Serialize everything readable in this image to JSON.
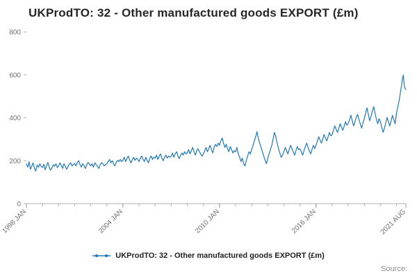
{
  "page": {
    "title": "UKProdTO: 32 - Other manufactured goods EXPORT (£m)",
    "source_label": "Source:"
  },
  "legend": {
    "label": "UKProdTO: 32 - Other manufactured goods EXPORT (£m)"
  },
  "chart_data": {
    "type": "line",
    "title": "UKProdTO: 32 - Other manufactured goods EXPORT (£m)",
    "xlabel": "",
    "ylabel": "",
    "ylim": [
      0,
      800
    ],
    "yticks": [
      0,
      200,
      400,
      600,
      800
    ],
    "x_start": "1998 JAN",
    "x_end": "2021 AUG",
    "x_frequency": "monthly",
    "grid": false,
    "legend_position": "bottom",
    "xticks": [
      {
        "index": 0,
        "label": "1998 JAN"
      },
      {
        "index": 72,
        "label": "2004 JAN"
      },
      {
        "index": 144,
        "label": "2010 JAN"
      },
      {
        "index": 216,
        "label": "2016 JAN"
      },
      {
        "index": 283,
        "label": "2021 AUG"
      }
    ],
    "minor_tick_every_months": 12,
    "series": [
      {
        "name": "UKProdTO: 32 - Other manufactured goods EXPORT (£m)",
        "color": "#1f77b4",
        "values": [
          185,
          170,
          195,
          160,
          175,
          190,
          165,
          152,
          180,
          170,
          186,
          174,
          168,
          184,
          158,
          176,
          192,
          170,
          156,
          166,
          181,
          174,
          186,
          168,
          176,
          190,
          178,
          164,
          186,
          174,
          160,
          172,
          184,
          190,
          176,
          182,
          186,
          176,
          192,
          200,
          182,
          170,
          186,
          176,
          164,
          182,
          192,
          184,
          176,
          186,
          170,
          190,
          182,
          174,
          164,
          182,
          190,
          186,
          176,
          182,
          186,
          196,
          206,
          190,
          200,
          186,
          176,
          192,
          202,
          196,
          206,
          196,
          202,
          216,
          196,
          210,
          222,
          202,
          190,
          206,
          216,
          202,
          212,
          206,
          196,
          212,
          222,
          206,
          196,
          216,
          202,
          190,
          212,
          222,
          206,
          216,
          212,
          226,
          206,
          222,
          232,
          212,
          200,
          216,
          226,
          212,
          222,
          216,
          222,
          236,
          216,
          232,
          242,
          222,
          210,
          226,
          236,
          226,
          242,
          232,
          236,
          252,
          232,
          246,
          262,
          242,
          226,
          246,
          256,
          242,
          232,
          222,
          232,
          246,
          262,
          242,
          256,
          272,
          252,
          236,
          262,
          276,
          266,
          282,
          272,
          292,
          306,
          282,
          262,
          276,
          256,
          242,
          266,
          252,
          236,
          246,
          242,
          262,
          232,
          216,
          196,
          212,
          186,
          176,
          202,
          222,
          242,
          232,
          252,
          272,
          292,
          312,
          336,
          302,
          282,
          262,
          242,
          222,
          202,
          186,
          212,
          232,
          252,
          272,
          302,
          332,
          312,
          282,
          256,
          236,
          216,
          226,
          242,
          262,
          246,
          232,
          252,
          272,
          256,
          242,
          226,
          246,
          266,
          252,
          256,
          242,
          226,
          246,
          266,
          282,
          262,
          246,
          232,
          252,
          272,
          256,
          272,
          292,
          312,
          296,
          282,
          302,
          322,
          306,
          292,
          312,
          332,
          316,
          322,
          342,
          362,
          346,
          332,
          352,
          372,
          356,
          342,
          362,
          382,
          366,
          372,
          392,
          412,
          386,
          362,
          382,
          402,
          416,
          392,
          372,
          352,
          376,
          396,
          422,
          446,
          416,
          386,
          406,
          432,
          452,
          422,
          392,
          372,
          396,
          382,
          356,
          332,
          352,
          376,
          402,
          382,
          362,
          386,
          412,
          392,
          372,
          422,
          452,
          482,
          522,
          562,
          600,
          542,
          532
        ]
      }
    ]
  }
}
